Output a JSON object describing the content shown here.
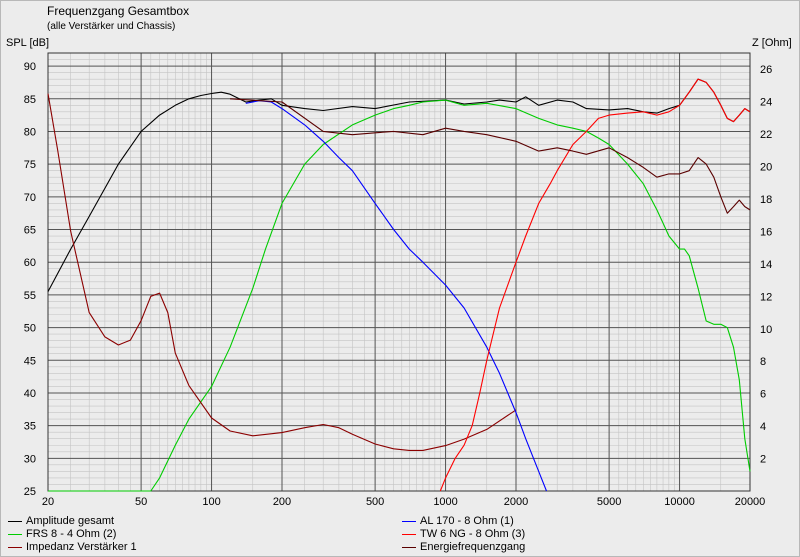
{
  "chart_data": {
    "type": "line",
    "title": "Frequenzgang Gesamtbox",
    "subtitle": "(alle Verstärker und Chassis)",
    "xscale": "log",
    "xlim": [
      20,
      20000
    ],
    "x_ticks": [
      20,
      50,
      100,
      200,
      500,
      1000,
      2000,
      5000,
      10000,
      20000
    ],
    "x_tick_labels": [
      "20",
      "50",
      "100",
      "200",
      "500",
      "1000",
      "2000",
      "5000",
      "10000",
      "20000"
    ],
    "ylabel": "SPL [dB]",
    "ylim": [
      25,
      92
    ],
    "y_ticks": [
      25,
      30,
      35,
      40,
      45,
      50,
      55,
      60,
      65,
      70,
      75,
      80,
      85,
      90
    ],
    "y2label": "Z [Ohm]",
    "y2lim": [
      0,
      27
    ],
    "y2_ticks": [
      2,
      4,
      6,
      8,
      10,
      12,
      14,
      16,
      18,
      20,
      22,
      24,
      26
    ],
    "grid": true,
    "legend_position": "bottom",
    "series": [
      {
        "name": "Amplitude gesamt",
        "color": "#000000",
        "axis": "left",
        "x": [
          20,
          25,
          30,
          40,
          50,
          60,
          70,
          80,
          90,
          100,
          110,
          120,
          140,
          160,
          180,
          200,
          250,
          300,
          400,
          500,
          700,
          1000,
          1200,
          1500,
          1700,
          2000,
          2200,
          2500,
          3000,
          3500,
          4000,
          5000,
          6000,
          7000,
          8000,
          9000,
          10000,
          11000,
          12000,
          13000,
          14000,
          15000,
          16000,
          17000,
          18000,
          19000,
          20000
        ],
        "y": [
          55.5,
          62,
          67,
          75,
          80,
          82.5,
          84,
          85,
          85.5,
          85.8,
          86,
          85.7,
          84.5,
          84.8,
          85,
          84,
          83.5,
          83.2,
          83.8,
          83.5,
          84.5,
          84.8,
          84.2,
          84.5,
          84.8,
          84.5,
          85.3,
          84,
          84.8,
          84.5,
          83.5,
          83.3,
          83.5,
          83,
          82.8,
          83.5,
          84,
          86,
          88,
          87.5,
          86,
          84,
          82,
          81.5,
          82.5,
          83.5,
          83
        ]
      },
      {
        "name": "FRS 8 - 4 Ohm (2)",
        "color": "#00cc00",
        "axis": "left",
        "x": [
          20,
          55,
          60,
          70,
          80,
          100,
          120,
          150,
          170,
          200,
          250,
          300,
          400,
          500,
          600,
          700,
          800,
          1000,
          1200,
          1500,
          2000,
          2500,
          3000,
          3500,
          4000,
          4500,
          5000,
          6000,
          7000,
          8000,
          8500,
          9000,
          10000,
          10500,
          11000,
          12000,
          13000,
          14000,
          15000,
          16000,
          17000,
          18000,
          19000,
          20000
        ],
        "y": [
          25,
          25,
          27,
          32,
          36,
          41,
          47,
          56,
          62,
          69,
          75,
          78,
          81,
          82.5,
          83.5,
          84,
          84.5,
          84.8,
          84,
          84.3,
          83.5,
          82,
          81,
          80.5,
          80,
          79,
          78,
          75,
          72,
          68,
          66,
          64,
          62,
          62,
          61,
          56,
          51,
          50.5,
          50.5,
          50,
          47,
          42,
          33,
          28
        ]
      },
      {
        "name": "Impedanz Verstärker 1",
        "color": "#8b0000",
        "axis": "right",
        "x": [
          20,
          22,
          25,
          30,
          35,
          40,
          45,
          50,
          55,
          60,
          65,
          70,
          80,
          100,
          120,
          150,
          200,
          250,
          300,
          350,
          400,
          500,
          600,
          700,
          800,
          1000,
          1200,
          1500,
          2000
        ],
        "y": [
          24.5,
          21,
          16,
          11,
          9.5,
          9,
          9.3,
          10.5,
          12,
          12.2,
          11,
          8.5,
          6.5,
          4.5,
          3.7,
          3.4,
          3.6,
          3.9,
          4.1,
          3.9,
          3.5,
          2.9,
          2.6,
          2.5,
          2.5,
          2.8,
          3.2,
          3.8,
          5
        ]
      },
      {
        "name": "AL 170 - 8 Ohm (1)",
        "color": "#0000ff",
        "axis": "left",
        "x": [
          140,
          160,
          180,
          200,
          250,
          300,
          350,
          400,
          500,
          600,
          700,
          800,
          1000,
          1200,
          1500,
          1700,
          2000,
          2200,
          2500,
          2700
        ],
        "y": [
          84.3,
          84.7,
          84.5,
          83.5,
          81,
          78.5,
          76,
          74,
          69,
          65,
          62,
          60,
          56.5,
          53,
          47,
          43,
          37,
          33,
          28,
          25
        ]
      },
      {
        "name": "TW 6 NG - 8 Ohm (3)",
        "color": "#ff0000",
        "axis": "left",
        "x": [
          950,
          1000,
          1100,
          1200,
          1300,
          1400,
          1500,
          1700,
          2000,
          2200,
          2500,
          2800,
          3000,
          3500,
          4000,
          4500,
          5000,
          6000,
          7000,
          8000,
          9000,
          10000,
          11000,
          12000,
          13000,
          14000,
          15000,
          16000,
          17000,
          18000,
          19000,
          20000
        ],
        "y": [
          25,
          27,
          30,
          32,
          35,
          40,
          45,
          53,
          60,
          64,
          69,
          72,
          74,
          78,
          80,
          82,
          82.5,
          82.8,
          83,
          82.5,
          83,
          84,
          86,
          88,
          87.5,
          86,
          84,
          82,
          81.5,
          82.5,
          83.5,
          83
        ]
      },
      {
        "name": "Energiefrequenzgang",
        "color": "#5a0000",
        "axis": "left",
        "x": [
          120,
          200,
          300,
          400,
          500,
          600,
          800,
          1000,
          1200,
          1500,
          2000,
          2500,
          3000,
          3500,
          4000,
          5000,
          6000,
          7000,
          8000,
          9000,
          10000,
          11000,
          12000,
          13000,
          14000,
          15000,
          16000,
          17000,
          18000,
          19000,
          20000
        ],
        "y": [
          85,
          84.5,
          80,
          79.5,
          79.8,
          80,
          79.5,
          80.5,
          80,
          79.5,
          78.5,
          77,
          77.5,
          77,
          76.5,
          77.5,
          76,
          74.5,
          73,
          73.5,
          73.5,
          74,
          76,
          75,
          73,
          70,
          67.5,
          68.5,
          69.5,
          68.5,
          68
        ]
      }
    ]
  }
}
